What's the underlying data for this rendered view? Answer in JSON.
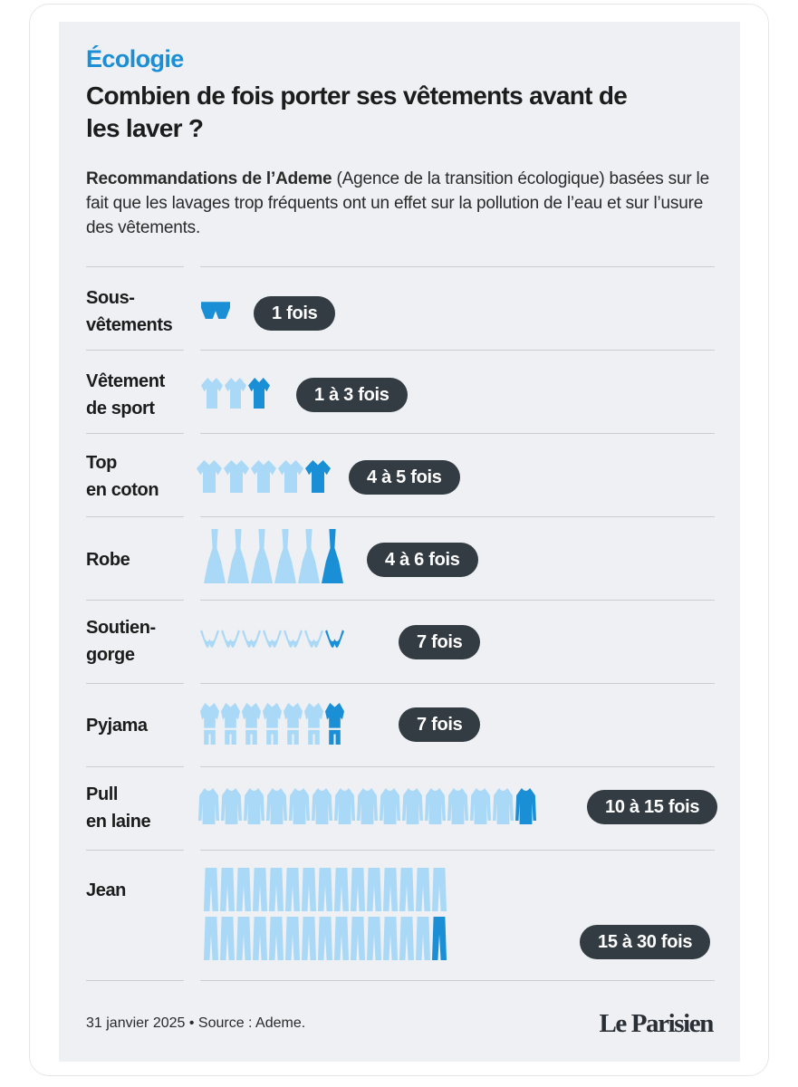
{
  "header": {
    "kicker": "Écologie",
    "title": "Combien de fois porter ses vêtements avant de les laver ?",
    "intro_bold": "Recommandations de l’Ademe",
    "intro_rest": " (Agence de la transition écologique) basées sur le fait que les lavages trop fréquents ont un effet sur la pollution de l’eau et sur l’usure des vêtements."
  },
  "colors": {
    "light_icon": "#a9d9f6",
    "dark_icon": "#1a8fd6",
    "pill_bg": "#333b43",
    "accent": "#1a8fd6"
  },
  "rows": [
    {
      "label": "Sous-\nvêtements",
      "icon": "underwear-icon",
      "count": 1,
      "value": "1 fois"
    },
    {
      "label": "Vêtement\nde sport",
      "icon": "sport-shirt-icon",
      "count": 3,
      "value": "1 à 3 fois"
    },
    {
      "label": "Top\nen coton",
      "icon": "cotton-top-icon",
      "count": 5,
      "value": "4 à 5 fois"
    },
    {
      "label": "Robe",
      "icon": "dress-icon",
      "count": 6,
      "value": "4 à 6 fois"
    },
    {
      "label": "Soutien-\ngorge",
      "icon": "bra-icon",
      "count": 7,
      "value": "7 fois"
    },
    {
      "label": "Pyjama",
      "icon": "pyjama-icon",
      "count": 7,
      "value": "7 fois"
    },
    {
      "label": "Pull\nen laine",
      "icon": "sweater-icon",
      "count": 15,
      "value": "10 à 15 fois"
    },
    {
      "label": "Jean",
      "icon": "jeans-icon",
      "count": 30,
      "value": "15 à 30 fois"
    }
  ],
  "footer": {
    "date_source": "31 janvier 2025 • Source : Ademe.",
    "brand": "Le Parisien"
  }
}
